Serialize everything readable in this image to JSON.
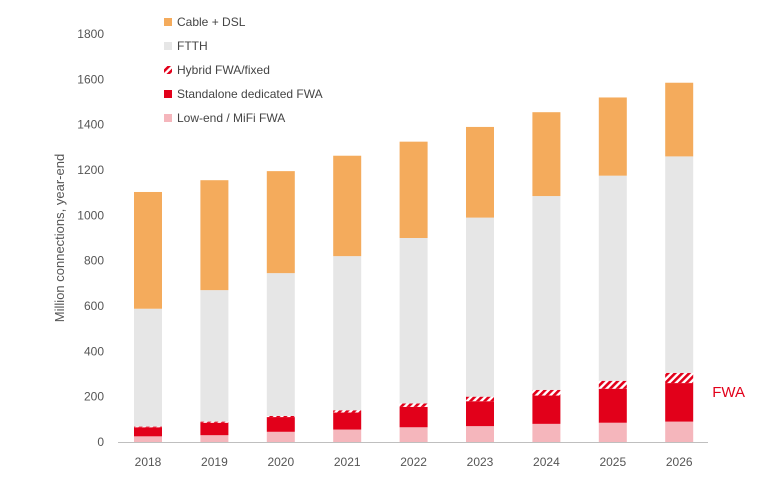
{
  "chart_data": {
    "type": "bar",
    "stacked": true,
    "ylabel": "Million connections, year-end",
    "xlabel": "",
    "ylim": [
      0,
      1800
    ],
    "yticks": [
      0,
      200,
      400,
      600,
      800,
      1000,
      1200,
      1400,
      1600,
      1800
    ],
    "grid": false,
    "legend_position": "top-left",
    "categories": [
      "2018",
      "2019",
      "2020",
      "2021",
      "2022",
      "2023",
      "2024",
      "2025",
      "2026"
    ],
    "series": [
      {
        "name": "Low-end / MiFi FWA",
        "color": "#f5b6bc",
        "pattern": "solid",
        "values": [
          25,
          30,
          45,
          55,
          65,
          70,
          80,
          85,
          90
        ]
      },
      {
        "name": "Standalone dedicated FWA",
        "color": "#e2001a",
        "pattern": "solid",
        "values": [
          40,
          55,
          65,
          75,
          90,
          110,
          125,
          150,
          170
        ]
      },
      {
        "name": "Hybrid FWA/fixed",
        "color": "#e2001a",
        "pattern": "hatched",
        "values": [
          3,
          5,
          5,
          10,
          15,
          20,
          25,
          35,
          45
        ]
      },
      {
        "name": "FTTH",
        "color": "#e6e6e6",
        "pattern": "solid",
        "values": [
          520,
          580,
          630,
          680,
          730,
          790,
          855,
          905,
          955
        ]
      },
      {
        "name": "Cable + DSL",
        "color": "#f4ab5c",
        "pattern": "solid",
        "values": [
          515,
          485,
          450,
          443,
          425,
          400,
          370,
          345,
          325
        ]
      }
    ],
    "legend_order": [
      "Cable + DSL",
      "FTTH",
      "Hybrid FWA/fixed",
      "Standalone dedicated FWA",
      "Low-end / MiFi FWA"
    ],
    "annotations": [
      {
        "text": "FWA",
        "color": "#e2001a",
        "category": "2026"
      }
    ]
  }
}
